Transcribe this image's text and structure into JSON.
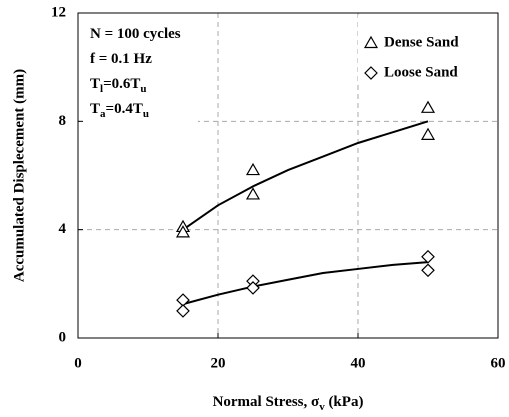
{
  "chart_data": {
    "type": "scatter",
    "xlabel": [
      "Normal Stress, σ",
      "v",
      " (kPa)"
    ],
    "ylabel": "Accumulated Displecement (mm)",
    "annotations": [
      [
        "N = 100 cycles"
      ],
      [
        "f = 0.1 Hz"
      ],
      [
        "T",
        "l",
        "=0.6T",
        "u"
      ],
      [
        "T",
        "a",
        "=0.4T",
        "u"
      ]
    ],
    "xlim": [
      0,
      60
    ],
    "xticks": [
      0,
      20,
      40,
      60
    ],
    "ylim": [
      0,
      12
    ],
    "yticks": [
      0,
      4,
      8,
      12
    ],
    "grid": true,
    "legend": "upper right",
    "series": [
      {
        "name": "Dense Sand",
        "marker": "triangle",
        "color": "#000000",
        "x": [
          15,
          15,
          25,
          25,
          50,
          50
        ],
        "values": [
          4.1,
          3.9,
          6.2,
          5.3,
          8.5,
          7.5
        ],
        "trend": {
          "x": [
            15,
            20,
            25,
            30,
            35,
            40,
            45,
            50
          ],
          "values": [
            4.0,
            4.9,
            5.6,
            6.2,
            6.7,
            7.2,
            7.6,
            8.0
          ]
        }
      },
      {
        "name": "Loose Sand",
        "marker": "diamond",
        "color": "#000000",
        "x": [
          15,
          15,
          25,
          25,
          50,
          50
        ],
        "values": [
          1.4,
          1.0,
          2.1,
          1.85,
          3.0,
          2.5
        ],
        "trend": {
          "x": [
            15,
            20,
            25,
            30,
            35,
            40,
            45,
            50
          ],
          "values": [
            1.25,
            1.6,
            1.9,
            2.15,
            2.4,
            2.55,
            2.7,
            2.8
          ]
        }
      }
    ]
  }
}
